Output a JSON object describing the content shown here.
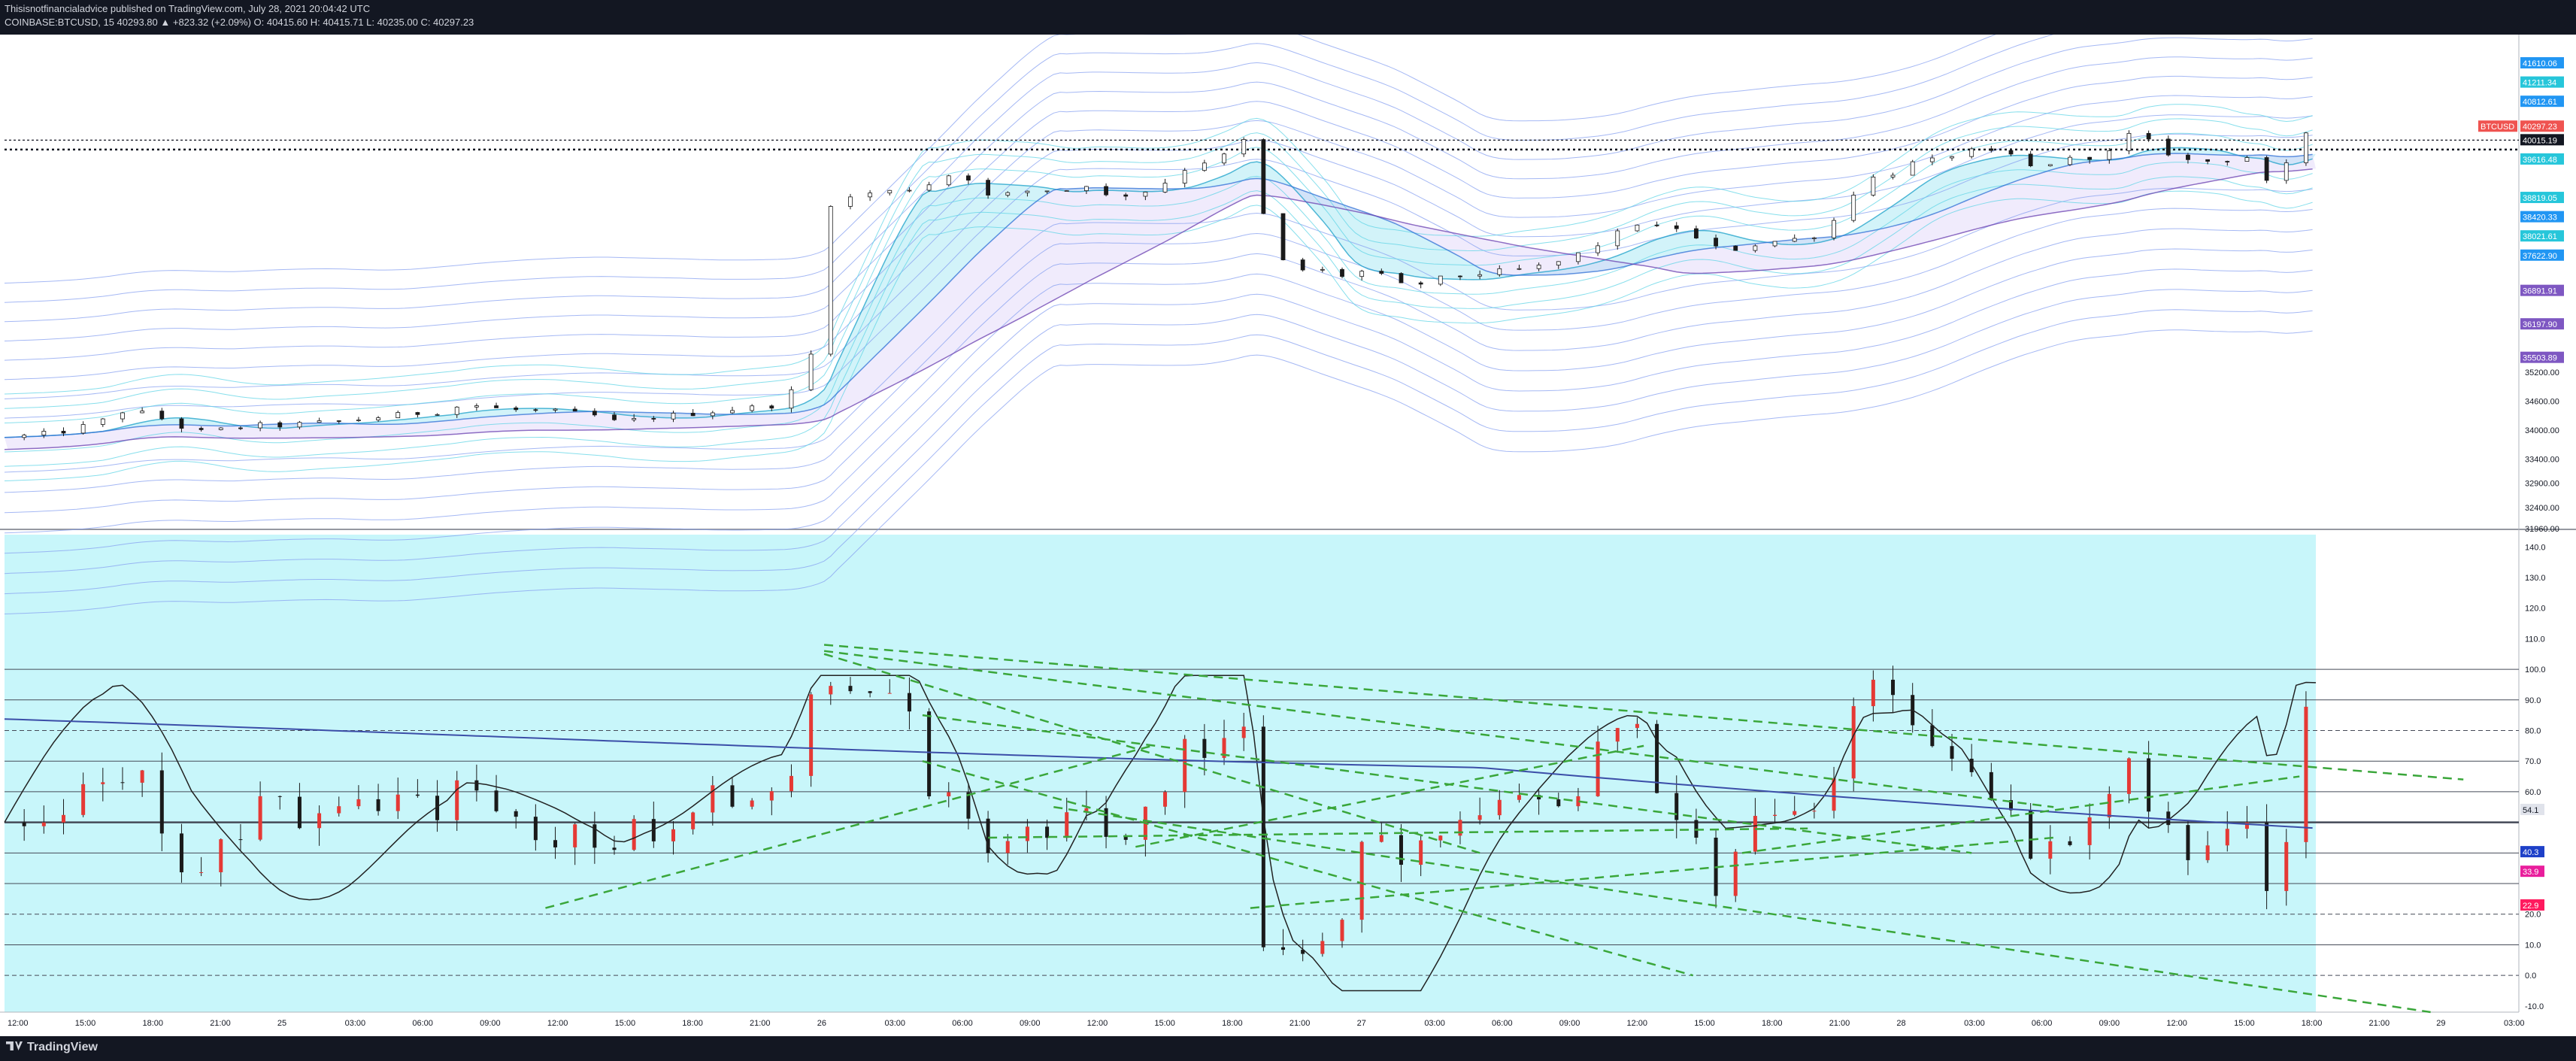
{
  "header": {
    "publisher_line": "Thisisnotfinancialadvice published on TradingView.com, July 28, 2021 20:04:42 UTC",
    "symbol_line": "COINBASE:BTCUSD, 15  40293.80  ▲ +823.32 (+2.09%)  O: 40415.60  H: 40415.71  L: 40235.00  C: 40297.23"
  },
  "footer": {
    "brand": "TradingView"
  },
  "colors": {
    "background": "#131722",
    "panel": "#ffffff",
    "oscillator_bg": "#c8f6fa",
    "candle_up": "#ef5350",
    "candle_down": "#1a1a1a",
    "band_blue": "#87a0f0",
    "band_cyan": "#5fd4e6",
    "band_purple": "#9c7ae0",
    "trendline": "#3aa63a",
    "osc_line": "#3b4ea8"
  },
  "chart_data": [
    {
      "type": "candlestick",
      "symbol": "BTCUSD",
      "x_tick_labels": [
        "12:00",
        "15:00",
        "18:00",
        "21:00",
        "25",
        "03:00",
        "06:00",
        "09:00",
        "12:00",
        "15:00",
        "18:00",
        "21:00",
        "26",
        "03:00",
        "06:00",
        "09:00",
        "12:00",
        "15:00",
        "18:00",
        "21:00",
        "27",
        "03:00",
        "06:00",
        "09:00",
        "12:00",
        "15:00",
        "18:00",
        "21:00",
        "28",
        "03:00",
        "06:00",
        "09:00",
        "12:00",
        "15:00",
        "18:00",
        "21:00",
        "29",
        "03:00"
      ],
      "y_tick_labels": [
        "35200.00",
        "34600.00",
        "34000.00",
        "33400.00",
        "32900.00",
        "32400.00",
        "31960.00"
      ],
      "ylim": [
        31960,
        41860
      ],
      "price_labels": [
        {
          "text": "41610.06",
          "color": "#2196f3"
        },
        {
          "text": "41211.34",
          "color": "#26c6da"
        },
        {
          "text": "40812.61",
          "color": "#2196f3"
        },
        {
          "text": "40297.23",
          "color": "#ef5350",
          "tag": "BTCUSD"
        },
        {
          "text": "40015.19",
          "color": "#131722"
        },
        {
          "text": "39616.48",
          "color": "#26c6da"
        },
        {
          "text": "38819.05",
          "color": "#26c6da"
        },
        {
          "text": "38420.33",
          "color": "#2196f3"
        },
        {
          "text": "38021.61",
          "color": "#26c6da"
        },
        {
          "text": "37622.90",
          "color": "#2196f3"
        },
        {
          "text": "36891.91",
          "color": "#7e57c2"
        },
        {
          "text": "36197.90",
          "color": "#7e57c2"
        },
        {
          "text": "35503.89",
          "color": "#7e57c2"
        }
      ],
      "close_path": [
        [
          0,
          33850
        ],
        [
          20,
          33900
        ],
        [
          40,
          34000
        ],
        [
          60,
          34200
        ],
        [
          70,
          34400
        ],
        [
          85,
          34350
        ],
        [
          100,
          34200
        ],
        [
          115,
          33950
        ],
        [
          130,
          34000
        ],
        [
          150,
          34100
        ],
        [
          170,
          34100
        ],
        [
          190,
          34150
        ],
        [
          210,
          34200
        ],
        [
          230,
          34280
        ],
        [
          250,
          34350
        ],
        [
          270,
          34400
        ],
        [
          280,
          34550
        ],
        [
          300,
          34450
        ],
        [
          320,
          34400
        ],
        [
          340,
          34380
        ],
        [
          360,
          34300
        ],
        [
          375,
          34150
        ],
        [
          390,
          34250
        ],
        [
          405,
          34300
        ],
        [
          420,
          34350
        ],
        [
          440,
          34420
        ],
        [
          460,
          34480
        ],
        [
          475,
          34550
        ],
        [
          482,
          34900
        ],
        [
          490,
          35400
        ],
        [
          496,
          35900
        ],
        [
          500,
          36400
        ],
        [
          504,
          38700
        ],
        [
          506,
          39500
        ],
        [
          510,
          38700
        ],
        [
          520,
          38900
        ],
        [
          540,
          38950
        ],
        [
          560,
          39050
        ],
        [
          580,
          39350
        ],
        [
          590,
          39200
        ],
        [
          600,
          38850
        ],
        [
          615,
          38900
        ],
        [
          630,
          39000
        ],
        [
          645,
          38950
        ],
        [
          660,
          39100
        ],
        [
          670,
          38850
        ],
        [
          690,
          38900
        ],
        [
          705,
          39050
        ],
        [
          715,
          39350
        ],
        [
          730,
          39550
        ],
        [
          745,
          39700
        ],
        [
          753,
          40150
        ],
        [
          760,
          39800
        ],
        [
          765,
          38800
        ],
        [
          775,
          37700
        ],
        [
          785,
          37300
        ],
        [
          800,
          37350
        ],
        [
          815,
          37200
        ],
        [
          830,
          37300
        ],
        [
          845,
          37150
        ],
        [
          855,
          36950
        ],
        [
          870,
          37100
        ],
        [
          885,
          37200
        ],
        [
          900,
          37250
        ],
        [
          915,
          37300
        ],
        [
          930,
          37350
        ],
        [
          945,
          37450
        ],
        [
          960,
          37650
        ],
        [
          975,
          37900
        ],
        [
          990,
          38200
        ],
        [
          1000,
          38350
        ],
        [
          1010,
          38150
        ],
        [
          1020,
          38200
        ],
        [
          1035,
          37900
        ],
        [
          1050,
          37700
        ],
        [
          1060,
          37800
        ],
        [
          1075,
          37900
        ],
        [
          1090,
          37950
        ],
        [
          1105,
          38050
        ],
        [
          1115,
          38300
        ],
        [
          1125,
          38800
        ],
        [
          1135,
          39200
        ],
        [
          1150,
          39300
        ],
        [
          1165,
          39550
        ],
        [
          1180,
          39600
        ],
        [
          1195,
          39800
        ],
        [
          1210,
          39750
        ],
        [
          1225,
          39700
        ],
        [
          1235,
          39450
        ],
        [
          1250,
          39550
        ],
        [
          1265,
          39650
        ],
        [
          1280,
          39700
        ],
        [
          1290,
          39850
        ],
        [
          1300,
          40300
        ],
        [
          1310,
          39900
        ],
        [
          1320,
          39750
        ],
        [
          1335,
          39550
        ],
        [
          1350,
          39600
        ],
        [
          1365,
          39650
        ],
        [
          1375,
          39700
        ],
        [
          1382,
          38900
        ],
        [
          1390,
          39300
        ],
        [
          1398,
          40050
        ],
        [
          1405,
          40200
        ],
        [
          1410,
          40300
        ]
      ]
    },
    {
      "type": "oscillator",
      "y_tick_labels": [
        "140.0",
        "130.0",
        "120.0",
        "110.0",
        "100.0",
        "90.0",
        "80.0",
        "70.0",
        "60.0",
        "54.1",
        "40.3",
        "33.9",
        "22.9",
        "20.0",
        "10.0",
        "0.0",
        "-10.0"
      ],
      "ylim": [
        -12,
        144
      ],
      "value_labels": [
        {
          "text": "54.1",
          "color": "#e0e3eb"
        },
        {
          "text": "40.3",
          "color": "#1e40c8"
        },
        {
          "text": "33.9",
          "color": "#e91e9c"
        },
        {
          "text": "22.9",
          "color": "#ff1a5e"
        }
      ],
      "levels": [
        100,
        90,
        80,
        70,
        60,
        50,
        40,
        30,
        20,
        10,
        0
      ]
    }
  ]
}
